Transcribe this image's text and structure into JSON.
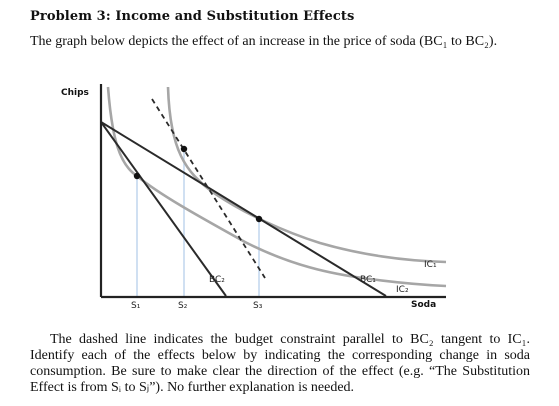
{
  "heading": "Problem 3: Income and Substitution Effects",
  "intro": "The graph below depicts the effect of an increase in the price of soda (BC₁ to BC₂).",
  "body": "The dashed line indicates the budget constraint parallel to BC₂ tangent to IC₁. Identify each of the effects below by indicating the corresponding change in soda consumption. Be sure to make clear the direction of the effect (e.g. “The Substitution Effect is from Sᵢ to Sⱼ”). No further explanation is needed.",
  "graph": {
    "y_axis_label": "Chips",
    "x_axis_label": "Soda",
    "budget_labels": {
      "bc1": "BC₁",
      "bc2": "BC₂"
    },
    "curve_labels": {
      "ic1": "IC₁",
      "ic2": "IC₂"
    },
    "soda_ticks": [
      "S₁",
      "S₂",
      "S₃"
    ],
    "colors": {
      "budget_line": "#2a2a2a",
      "indifference_curve": "#a6a6a6",
      "guide_line": "#bcd3ec",
      "axis": "#222222"
    }
  }
}
